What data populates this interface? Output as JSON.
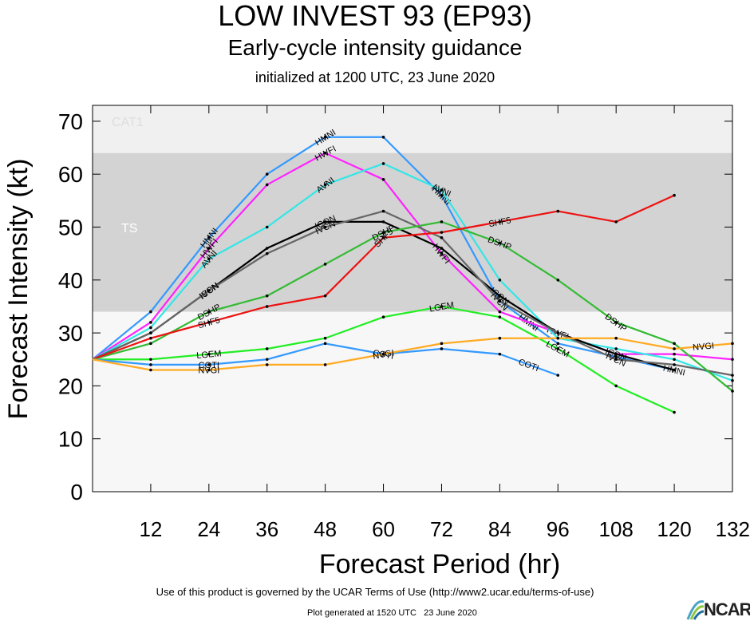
{
  "title": "LOW INVEST 93 (EP93)",
  "subtitle": "Early-cycle intensity guidance",
  "initialized": "initialized at 1200 UTC, 23 June 2020",
  "terms": "Use of this product is governed by the UCAR Terms of Use (http://www2.ucar.edu/terms-of-use)",
  "generated": "Plot generated at 1520 UTC   23 June 2020",
  "logo_text": "NCAR",
  "chart_data": {
    "type": "line",
    "xlabel": "Forecast Period (hr)",
    "ylabel": "Forecast Intensity (kt)",
    "xlim": [
      0,
      132
    ],
    "ylim": [
      0,
      73
    ],
    "x_ticks": [
      12,
      24,
      36,
      48,
      60,
      72,
      84,
      96,
      108,
      120,
      132
    ],
    "y_ticks": [
      0,
      10,
      20,
      30,
      40,
      50,
      60,
      70
    ],
    "bands": [
      {
        "label": "CAT1",
        "from": 64,
        "to": 73,
        "color": "#f0f0f0"
      },
      {
        "label": "TS",
        "from": 34,
        "to": 64,
        "color": "#d3d3d3"
      },
      {
        "label": "",
        "from": 0,
        "to": 34,
        "color": "#f7f7f7"
      }
    ],
    "series": [
      {
        "name": "HMNI",
        "color": "#3399ff",
        "label_x": [
          24,
          48,
          72,
          90,
          120
        ],
        "x": [
          0,
          12,
          24,
          36,
          48,
          60,
          72,
          84,
          96,
          108,
          120
        ],
        "y": [
          25,
          34,
          48,
          60,
          67,
          67,
          56,
          36,
          28,
          25.5,
          23
        ]
      },
      {
        "name": "HWFI",
        "color": "#ff22ff",
        "label_x": [
          24,
          48,
          72,
          96
        ],
        "x": [
          0,
          12,
          24,
          36,
          48,
          60,
          72,
          84,
          96,
          108,
          120,
          132
        ],
        "y": [
          25,
          32,
          46,
          58,
          64,
          59,
          45,
          34,
          30,
          26,
          26,
          25
        ]
      },
      {
        "name": "AVNI",
        "color": "#33e6e6",
        "label_x": [
          24,
          48,
          72
        ],
        "x": [
          0,
          12,
          24,
          36,
          48,
          60,
          72,
          84,
          96,
          108,
          120,
          132
        ],
        "y": [
          25,
          31,
          44,
          50,
          58,
          62,
          57,
          40,
          29,
          27,
          25,
          21
        ]
      },
      {
        "name": "ICON",
        "color": "#000000",
        "label_x": [
          24,
          48,
          84,
          108
        ],
        "x": [
          0,
          12,
          24,
          36,
          48,
          60,
          72,
          84,
          96,
          108,
          120
        ],
        "y": [
          25,
          30,
          38,
          46,
          51,
          51,
          46,
          37,
          30,
          26,
          23
        ]
      },
      {
        "name": "IVCN",
        "color": "#666666",
        "label_x": [
          24,
          48,
          84,
          108
        ],
        "x": [
          0,
          12,
          24,
          36,
          48,
          60,
          72,
          84,
          96,
          108,
          120,
          132
        ],
        "y": [
          25,
          30,
          38,
          45,
          50,
          53,
          48,
          36,
          30,
          25,
          24,
          22
        ]
      },
      {
        "name": "DSHP",
        "color": "#33bb33",
        "label_x": [
          24,
          60,
          84,
          108
        ],
        "x": [
          0,
          12,
          24,
          36,
          48,
          60,
          72,
          84,
          96,
          108,
          120,
          132
        ],
        "y": [
          25,
          28,
          34,
          37,
          43,
          49,
          51,
          47,
          40,
          32,
          28,
          19
        ]
      },
      {
        "name": "SHF5",
        "color": "#ee1111",
        "label_x": [
          24,
          60,
          84
        ],
        "x": [
          0,
          12,
          24,
          36,
          48,
          60,
          72,
          84,
          96,
          108,
          120
        ],
        "y": [
          25,
          29,
          32,
          35,
          37,
          48,
          49,
          51,
          53,
          51,
          56
        ]
      },
      {
        "name": "LGEM",
        "color": "#22ee22",
        "label_x": [
          24,
          72,
          96
        ],
        "x": [
          0,
          12,
          24,
          36,
          48,
          60,
          72,
          84,
          96,
          108,
          120
        ],
        "y": [
          25,
          25,
          26,
          27,
          29,
          33,
          35,
          33,
          27,
          20,
          15
        ]
      },
      {
        "name": "COTI",
        "color": "#3399ff",
        "label_x": [
          24,
          60,
          90
        ],
        "x": [
          0,
          12,
          24,
          36,
          48,
          60,
          72,
          84,
          96
        ],
        "y": [
          25,
          24,
          24,
          25,
          28,
          26,
          27,
          26,
          22
        ]
      },
      {
        "name": "NVGI",
        "color": "#ffaa22",
        "label_x": [
          24,
          60,
          126
        ],
        "x": [
          0,
          12,
          24,
          36,
          48,
          60,
          72,
          84,
          96,
          108,
          120,
          132
        ],
        "y": [
          25,
          23,
          23,
          24,
          24,
          26,
          28,
          29,
          29,
          29,
          27,
          28
        ]
      }
    ]
  }
}
